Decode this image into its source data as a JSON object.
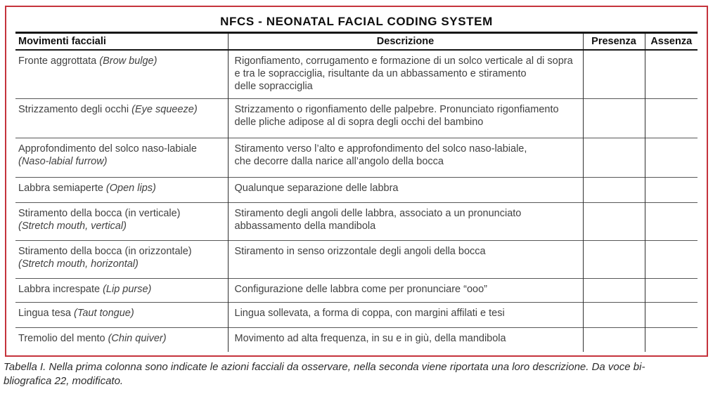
{
  "title": "NFCS - NEONATAL FACIAL CODING SYSTEM",
  "colors": {
    "frame_border": "#c5333c",
    "title_text": "#0e0e0e",
    "body_text": "#414141",
    "thick_rule": "#161616",
    "row_rule": "#575757"
  },
  "table": {
    "columns": [
      "Movimenti facciali",
      "Descrizione",
      "Presenza",
      "Assenza"
    ],
    "rows": [
      {
        "movement_it": "Fronte aggrottata",
        "movement_en": "(Brow bulge)",
        "en_on_new_line": false,
        "description": "Rigonfiamento, corrugamento e formazione di un solco verticale al di sopra\ne tra le sopracciglia, risultante da un abbassamento e stiramento\ndelle sopracciglia",
        "presenza": "",
        "assenza": ""
      },
      {
        "movement_it": "Strizzamento degli occhi",
        "movement_en": "(Eye squeeze)",
        "en_on_new_line": false,
        "description": "Strizzamento o rigonfiamento delle palpebre. Pronunciato rigonfiamento\ndelle pliche adipose al di sopra degli occhi del bambino",
        "presenza": "",
        "assenza": ""
      },
      {
        "movement_it": "Approfondimento del solco naso-labiale",
        "movement_en": "(Naso-labial furrow)",
        "en_on_new_line": true,
        "description": "Stiramento verso l’alto e approfondimento del solco naso-labiale,\nche decorre dalla narice all’angolo della bocca",
        "presenza": "",
        "assenza": ""
      },
      {
        "movement_it": "Labbra semiaperte",
        "movement_en": "(Open lips)",
        "en_on_new_line": false,
        "description": "Qualunque separazione delle labbra",
        "presenza": "",
        "assenza": ""
      },
      {
        "movement_it": "Stiramento della bocca (in verticale)",
        "movement_en": "(Stretch mouth, vertical)",
        "en_on_new_line": true,
        "description": "Stiramento degli angoli delle labbra, associato a un pronunciato\nabbassamento della mandibola",
        "presenza": "",
        "assenza": ""
      },
      {
        "movement_it": "Stiramento della bocca (in orizzontale)",
        "movement_en": "(Stretch mouth, horizontal)",
        "en_on_new_line": true,
        "description": "Stiramento in senso orizzontale degli angoli della bocca",
        "presenza": "",
        "assenza": ""
      },
      {
        "movement_it": "Labbra increspate",
        "movement_en": "(Lip purse)",
        "en_on_new_line": false,
        "description": "Configurazione delle labbra come per pronunciare “ooo”",
        "presenza": "",
        "assenza": ""
      },
      {
        "movement_it": "Lingua tesa",
        "movement_en": "(Taut tongue)",
        "en_on_new_line": false,
        "description": "Lingua sollevata, a forma di coppa, con margini affilati e tesi",
        "presenza": "",
        "assenza": ""
      },
      {
        "movement_it": "Tremolio del mento",
        "movement_en": "(Chin quiver)",
        "en_on_new_line": false,
        "description": "Movimento ad alta frequenza, in su e in giù, della mandibola",
        "presenza": "",
        "assenza": ""
      }
    ]
  },
  "caption": "Tabella I. Nella prima colonna sono indicate le azioni facciali da osservare, nella seconda viene riportata una loro descrizione. Da voce bi-\nbliografica 22, modificato."
}
